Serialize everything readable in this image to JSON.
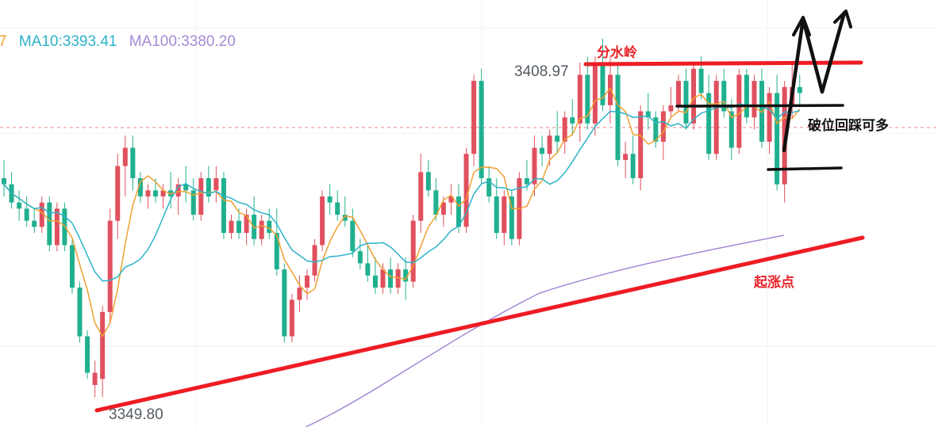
{
  "chart_data": {
    "type": "candlestick",
    "legend": [
      {
        "text": "7",
        "color": "#f0a030"
      },
      {
        "text": "MA10:3393.41",
        "color": "#2bb3c8"
      },
      {
        "text": "MA100:3380.20",
        "color": "#a58ad6"
      }
    ],
    "high_label": "3408.97",
    "low_label": "3349.80",
    "annotations": {
      "watershed": "分水岭",
      "breakout": "破位回踩可多",
      "start_point": "起涨点"
    },
    "colors": {
      "up": "#e0505e",
      "down": "#20b08f",
      "ma5": "#f0a030",
      "ma10": "#2bb3c8",
      "ma100": "#a58ad6",
      "trend": "#ee1c24",
      "reference_dash": "#f08080"
    },
    "ylim": [
      3346,
      3414
    ],
    "candles": [
      [
        3386,
        3389,
        3383,
        3385
      ],
      [
        3385,
        3387,
        3381,
        3382
      ],
      [
        3382,
        3384,
        3379,
        3381
      ],
      [
        3381,
        3383,
        3378,
        3379
      ],
      [
        3379,
        3381,
        3377,
        3378
      ],
      [
        3378,
        3383,
        3377,
        3382
      ],
      [
        3382,
        3383,
        3374,
        3375
      ],
      [
        3375,
        3382,
        3374,
        3381
      ],
      [
        3381,
        3382,
        3374,
        3375
      ],
      [
        3375,
        3376,
        3367,
        3368
      ],
      [
        3368,
        3369,
        3359,
        3360
      ],
      [
        3360,
        3361,
        3353,
        3354
      ],
      [
        3352,
        3356,
        3350,
        3354
      ],
      [
        3353,
        3365,
        3350,
        3364
      ],
      [
        3364,
        3381,
        3362,
        3379
      ],
      [
        3379,
        3390,
        3376,
        3388
      ],
      [
        3388,
        3393,
        3383,
        3391
      ],
      [
        3391,
        3393,
        3384,
        3386
      ],
      [
        3386,
        3387,
        3382,
        3383
      ],
      [
        3383,
        3385,
        3381,
        3384
      ],
      [
        3384,
        3386,
        3382,
        3383
      ],
      [
        3383,
        3385,
        3381,
        3384
      ],
      [
        3384,
        3387,
        3381,
        3383
      ],
      [
        3383,
        3386,
        3380,
        3385
      ],
      [
        3385,
        3388,
        3382,
        3384
      ],
      [
        3384,
        3386,
        3379,
        3380
      ],
      [
        3380,
        3387,
        3379,
        3386
      ],
      [
        3386,
        3388,
        3382,
        3383
      ],
      [
        3384,
        3388,
        3382,
        3386
      ],
      [
        3386,
        3387,
        3376,
        3377
      ],
      [
        3377,
        3380,
        3376,
        3379
      ],
      [
        3379,
        3381,
        3376,
        3377
      ],
      [
        3377,
        3381,
        3375,
        3380
      ],
      [
        3380,
        3383,
        3375,
        3376
      ],
      [
        3376,
        3380,
        3375,
        3379
      ],
      [
        3379,
        3381,
        3376,
        3377
      ],
      [
        3377,
        3381,
        3370,
        3371
      ],
      [
        3371,
        3372,
        3359,
        3360
      ],
      [
        3360,
        3367,
        3359,
        3366
      ],
      [
        3366,
        3370,
        3364,
        3368
      ],
      [
        3368,
        3371,
        3366,
        3370
      ],
      [
        3370,
        3376,
        3369,
        3375
      ],
      [
        3375,
        3384,
        3374,
        3383
      ],
      [
        3383,
        3385,
        3380,
        3382
      ],
      [
        3382,
        3384,
        3379,
        3380
      ],
      [
        3380,
        3383,
        3378,
        3379
      ],
      [
        3379,
        3381,
        3373,
        3374
      ],
      [
        3374,
        3376,
        3371,
        3372
      ],
      [
        3372,
        3375,
        3369,
        3370
      ],
      [
        3370,
        3373,
        3367,
        3368
      ],
      [
        3368,
        3372,
        3367,
        3371
      ],
      [
        3371,
        3373,
        3367,
        3368
      ],
      [
        3368,
        3372,
        3367,
        3371
      ],
      [
        3371,
        3373,
        3366,
        3369
      ],
      [
        3369,
        3380,
        3368,
        3379
      ],
      [
        3379,
        3390,
        3377,
        3387
      ],
      [
        3387,
        3389,
        3383,
        3384
      ],
      [
        3384,
        3386,
        3379,
        3380
      ],
      [
        3380,
        3383,
        3378,
        3382
      ],
      [
        3382,
        3385,
        3380,
        3383
      ],
      [
        3383,
        3385,
        3377,
        3378
      ],
      [
        3378,
        3391,
        3377,
        3390
      ],
      [
        3390,
        3403,
        3388,
        3402
      ],
      [
        3402,
        3404,
        3385,
        3386
      ],
      [
        3386,
        3388,
        3382,
        3383
      ],
      [
        3383,
        3386,
        3376,
        3377
      ],
      [
        3377,
        3384,
        3375,
        3383
      ],
      [
        3383,
        3384,
        3375,
        3376
      ],
      [
        3376,
        3387,
        3375,
        3386
      ],
      [
        3386,
        3389,
        3384,
        3385
      ],
      [
        3385,
        3393,
        3383,
        3391
      ],
      [
        3391,
        3393,
        3388,
        3390
      ],
      [
        3390,
        3394,
        3388,
        3393
      ],
      [
        3393,
        3397,
        3390,
        3392
      ],
      [
        3392,
        3397,
        3390,
        3396
      ],
      [
        3396,
        3399,
        3393,
        3395
      ],
      [
        3395,
        3405,
        3392,
        3403
      ],
      [
        3403,
        3406,
        3394,
        3395
      ],
      [
        3395,
        3406,
        3393,
        3405
      ],
      [
        3405,
        3408.97,
        3397,
        3398
      ],
      [
        3398,
        3406,
        3395,
        3403
      ],
      [
        3403,
        3405,
        3388,
        3389
      ],
      [
        3389,
        3392,
        3386,
        3390
      ],
      [
        3390,
        3393,
        3385,
        3386
      ],
      [
        3386,
        3398,
        3384,
        3397
      ],
      [
        3397,
        3400,
        3394,
        3396
      ],
      [
        3396,
        3397,
        3391,
        3392
      ],
      [
        3392,
        3398,
        3389,
        3397
      ],
      [
        3397,
        3401,
        3396,
        3398
      ],
      [
        3398,
        3403,
        3397,
        3402
      ],
      [
        3402,
        3404,
        3394,
        3395
      ],
      [
        3395,
        3405,
        3394,
        3404
      ],
      [
        3404,
        3406,
        3399,
        3400
      ],
      [
        3400,
        3403,
        3389,
        3390
      ],
      [
        3390,
        3403,
        3389,
        3402
      ],
      [
        3402,
        3404,
        3396,
        3397
      ],
      [
        3397,
        3399,
        3389,
        3391
      ],
      [
        3391,
        3404,
        3390,
        3403
      ],
      [
        3403,
        3404,
        3395,
        3396
      ],
      [
        3396,
        3403,
        3394,
        3402
      ],
      [
        3402,
        3404,
        3391,
        3392
      ],
      [
        3392,
        3401,
        3390,
        3400
      ],
      [
        3400,
        3403,
        3384,
        3385
      ],
      [
        3385,
        3402,
        3382,
        3401
      ],
      [
        3398,
        3405,
        3396,
        3401
      ],
      [
        3401,
        3403,
        3398,
        3400
      ]
    ]
  }
}
